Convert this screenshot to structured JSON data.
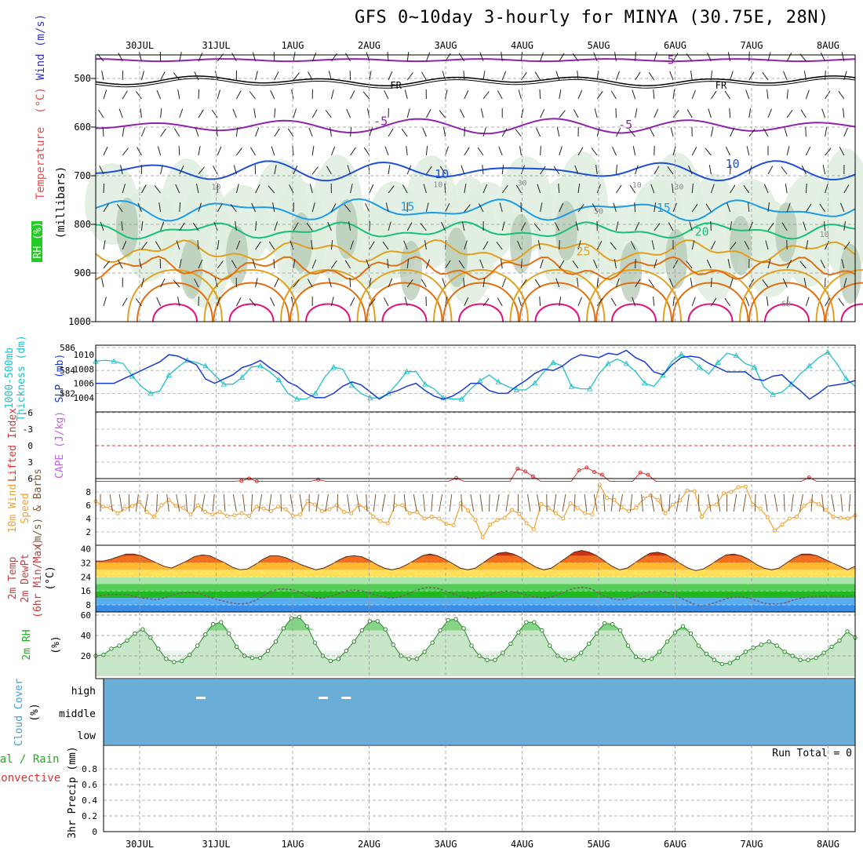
{
  "title": "GFS 0~10day 3-hourly for MINYA (30.75E, 28N)",
  "days": [
    "30JUL",
    "31JUL",
    "1AUG",
    "2AUG",
    "3AUG",
    "4AUG",
    "5AUG",
    "6AUG",
    "7AUG",
    "8AUG"
  ],
  "colors": {
    "isotherm_violet": "#8e24aa",
    "isotherm_blue": "#1e4fd8",
    "isotherm_sky": "#1e9be6",
    "isotherm_green": "#16c07a",
    "isotherm_orange": "#e0a020",
    "isotherm_darkorange": "#e07014",
    "isotherm_magenta": "#e0147c",
    "rh_shade_light": "#e0eee0",
    "rh_shade_mid": "#b4c8b4",
    "thickness": "#22c0c8",
    "slp": "#1a3ccc",
    "lifted_index": "#e03030",
    "wind10m": "#f0a030",
    "barb": "#7a5a3a",
    "rh2m_fill": "#5cc85c",
    "cloud": "#6aaed8"
  },
  "chart_data": [
    {
      "type": "contour",
      "panel": "upper-air",
      "ylabel_left": [
        "Temperature",
        "(°C)",
        "Wind (m/s)"
      ],
      "ylabel_rh": "RH (%)",
      "ylabel_unit": "(millibars)",
      "y_ticks": [
        500,
        600,
        700,
        800,
        900,
        1000
      ],
      "ylim": [
        1000,
        450
      ],
      "isotherm_labels": [
        {
          "text": "-5",
          "day": 7.45,
          "p": 462
        },
        {
          "text": "FR",
          "day": 3.9,
          "p": 513
        },
        {
          "text": "FR",
          "day": 8.15,
          "p": 513
        },
        {
          "text": "-5",
          "day": 3.7,
          "p": 588
        },
        {
          "text": "-5",
          "day": 6.9,
          "p": 595
        },
        {
          "text": "10",
          "day": 4.5,
          "p": 697
        },
        {
          "text": "10",
          "day": 8.3,
          "p": 676
        },
        {
          "text": "15",
          "day": 4.05,
          "p": 764
        },
        {
          "text": "15",
          "day": 7.4,
          "p": 766
        },
        {
          "text": "20",
          "day": 7.9,
          "p": 815
        },
        {
          "text": "25",
          "day": 6.35,
          "p": 856
        }
      ],
      "rh_labels": [
        {
          "text": "10",
          "day": 1.55,
          "p": 722
        },
        {
          "text": "10",
          "day": 4.45,
          "p": 717
        },
        {
          "text": "30",
          "day": 5.55,
          "p": 714
        },
        {
          "text": "10",
          "day": 7.05,
          "p": 718
        },
        {
          "text": "30",
          "day": 7.6,
          "p": 722
        },
        {
          "text": "50",
          "day": 6.55,
          "p": 772
        },
        {
          "text": "10",
          "day": 9.5,
          "p": 819
        },
        {
          "text": "60",
          "day": 9.0,
          "p": 962
        }
      ]
    },
    {
      "type": "line",
      "panel": "thickness-slp",
      "ylabel_thickness": [
        "1000-500mb",
        "Thickness (dm)"
      ],
      "ylabel_slp": "SLP (mb)",
      "thickness_ticks": [
        582,
        584,
        586
      ],
      "slp_ticks": [
        1004,
        1006,
        1008,
        1010
      ],
      "series": [
        {
          "values": [
            584.8,
            584.9,
            584.8,
            584.6,
            583.5,
            582.6,
            582.0,
            582.2,
            583.6,
            584.3,
            584.9,
            584.7,
            584.4,
            583.6,
            582.8,
            582.8,
            583.4,
            584.3,
            584.4,
            583.9,
            583.2,
            582.0,
            581.5,
            581.5,
            582.0,
            583.4,
            584.3,
            584.1,
            582.7,
            582.0,
            581.6,
            581.6,
            582.0,
            582.9,
            583.9,
            583.9,
            582.8,
            582.4,
            581.6,
            581.5,
            581.5,
            582.4,
            583.1,
            583.6,
            583.0,
            582.6,
            582.3,
            582.3,
            582.9,
            583.9,
            584.7,
            584.4,
            582.6,
            582.4,
            582.4,
            583.7,
            584.6,
            585.0,
            584.6,
            583.9,
            582.9,
            582.6,
            583.6,
            584.8,
            585.4,
            585.0,
            584.3,
            583.7,
            584.7,
            585.5,
            585.3,
            584.6,
            584.3,
            582.6,
            581.9,
            582.1,
            582.8,
            583.7,
            584.4,
            585.1,
            585.6,
            584.6,
            583.3,
            582.6
          ]
        },
        {
          "values": [
            1006,
            1006,
            1006,
            1006.6,
            1007.2,
            1007.8,
            1008.4,
            1009,
            1010,
            1009.8,
            1009.2,
            1008.6,
            1006.6,
            1006,
            1006.6,
            1007.2,
            1008.2,
            1008.6,
            1009.2,
            1008.2,
            1007.4,
            1006.2,
            1005.6,
            1004.6,
            1004,
            1004,
            1004.6,
            1005.6,
            1006.2,
            1005.8,
            1004.8,
            1003.8,
            1004.6,
            1005,
            1005.6,
            1006,
            1005,
            1004.2,
            1003.8,
            1004.2,
            1005,
            1006,
            1006,
            1005,
            1004.6,
            1004.6,
            1005.6,
            1006.4,
            1007.4,
            1008,
            1007.8,
            1008.4,
            1009.4,
            1010,
            1009.8,
            1009.6,
            1010.2,
            1010,
            1010.6,
            1009.6,
            1009,
            1007.6,
            1007.2,
            1008.6,
            1009.6,
            1009.8,
            1009.6,
            1008.8,
            1008.2,
            1007.6,
            1007.6,
            1007.6,
            1006.6,
            1006.4,
            1007,
            1007.2,
            1006,
            1005,
            1003.8,
            1004.6,
            1005.6,
            1005.8,
            1006,
            1006.4
          ]
        }
      ]
    },
    {
      "type": "line",
      "panel": "stability",
      "ylabel_li": "Lifted Index",
      "ylabel_cape": "CAPE (J/kg)",
      "y_ticks": [
        "-6",
        "-3",
        "0",
        "3",
        "6"
      ],
      "ylim": [
        -6,
        6
      ],
      "series": [
        {
          "values": [
            7,
            7,
            7,
            7,
            7,
            7,
            7,
            7,
            7,
            7,
            7,
            7,
            7,
            7,
            7,
            7,
            7,
            7,
            7,
            6.4,
            6,
            6.6,
            7,
            7,
            7,
            7,
            7,
            7,
            7,
            6.2,
            7,
            7,
            7,
            7,
            7,
            7,
            7,
            7,
            7,
            7,
            7,
            7,
            7,
            7,
            7,
            7,
            7,
            5.9,
            7,
            7,
            7,
            7,
            7,
            7,
            7,
            4.2,
            4.7,
            5.6,
            7,
            7,
            7,
            7,
            7,
            4.5,
            4,
            4.8,
            5.3,
            7,
            7,
            7,
            7,
            4.9,
            5.3,
            7,
            7,
            7,
            7,
            7,
            7,
            7,
            7,
            7,
            7,
            7,
            7,
            7,
            7,
            7,
            7,
            7,
            7,
            7,
            7,
            5.8,
            7,
            7,
            7,
            7,
            7,
            7
          ]
        }
      ]
    },
    {
      "type": "line",
      "panel": "wind10m",
      "ylabel": [
        "10m Wind",
        "Speed",
        "(m/s) & Barbs"
      ],
      "y_ticks": [
        2,
        4,
        6,
        8
      ],
      "ylim": [
        0,
        10
      ],
      "series": [
        {
          "values": [
            6.6,
            5.8,
            5.6,
            4.8,
            5.5,
            5.9,
            6.5,
            5.0,
            4.3,
            6.0,
            6.8,
            5.9,
            5.6,
            4.6,
            6.0,
            5.0,
            4.6,
            5.0,
            4.4,
            4.5,
            4.8,
            4.4,
            5.8,
            5.5,
            5.1,
            5.8,
            5.4,
            4.4,
            4.6,
            6.6,
            6.1,
            5.1,
            5.4,
            6.0,
            5.0,
            4.8,
            6.0,
            5.6,
            4.3,
            3.6,
            3.3,
            6.0,
            6.0,
            4.8,
            5.0,
            4.0,
            4.3,
            4.0,
            3.2,
            3.0,
            6.3,
            5.2,
            3.8,
            1.2,
            3.1,
            3.8,
            4.1,
            5.3,
            4.7,
            3.3,
            2.4,
            6.2,
            5.6,
            4.8,
            4.0,
            6.3,
            5.6,
            4.8,
            4.6,
            9.1,
            7.1,
            6.8,
            5.7,
            5.1,
            5.6,
            7.0,
            7.5,
            6.8,
            4.8,
            6.1,
            6.7,
            8.2,
            8.1,
            4.3,
            5.9,
            6.1,
            7.8,
            8.0,
            8.7,
            8.8,
            6.1,
            5.5,
            4.2,
            2.2,
            3.1,
            4.0,
            4.3,
            5.9,
            6.6,
            6.2,
            5.3,
            4.3,
            4.1,
            4.0,
            4.5
          ]
        }
      ]
    },
    {
      "type": "area",
      "panel": "temp2m",
      "ylabel": [
        "2m Temp",
        "2m DewPt",
        "(6hr Min/Max)",
        "(°C)"
      ],
      "y_ticks": [
        8,
        16,
        24,
        32,
        40
      ],
      "ylim": [
        4,
        42
      ],
      "series": [
        {
          "values": [
            33,
            33,
            34,
            35.5,
            37,
            37,
            36,
            34,
            32,
            30,
            29,
            31,
            33,
            35.5,
            36.5,
            36,
            34,
            32,
            29.5,
            28,
            28.5,
            31,
            34,
            36,
            36,
            35,
            33,
            31,
            29.5,
            28,
            29,
            31,
            33.5,
            35.5,
            36,
            35.5,
            33.5,
            31,
            29,
            28,
            29,
            31,
            33.5,
            36,
            37,
            36,
            34,
            31.5,
            29,
            28,
            29,
            32,
            35,
            37.5,
            38,
            37,
            35,
            32,
            29.5,
            28,
            29,
            32,
            35,
            38,
            39,
            38,
            36,
            33,
            30,
            28,
            29,
            32,
            35,
            37.5,
            38,
            37,
            34.5,
            31.5,
            29,
            27.5,
            28.5,
            31,
            34,
            36.5,
            37,
            36,
            34,
            31,
            29,
            28,
            29,
            32,
            35,
            37,
            37,
            36,
            34,
            32,
            30,
            28,
            30
          ]
        },
        {
          "values": [
            13,
            13.5,
            14,
            14,
            14,
            13,
            12,
            11.5,
            11,
            12,
            13.5,
            14.5,
            15,
            15,
            14,
            12.5,
            11,
            10,
            9,
            8.5,
            9,
            10.5,
            13,
            15.5,
            17,
            17,
            16.5,
            15,
            13,
            12,
            12,
            13,
            14.5,
            16,
            16.5,
            16,
            15,
            13.5,
            12.5,
            12,
            12.5,
            14,
            16,
            17.5,
            18,
            17.5,
            16,
            14.5,
            13,
            12,
            12,
            12.5,
            14,
            15.5,
            16,
            15.5,
            14.5,
            13.5,
            12.5,
            12,
            12.5,
            14,
            16,
            17.5,
            18,
            17.5,
            15.5,
            13,
            11.5,
            11,
            11.5,
            13,
            14.5,
            15.5,
            16,
            15.5,
            14,
            12,
            10,
            8,
            7.5,
            8.5,
            10,
            11.5,
            12.5,
            12.5,
            12,
            10.5,
            9,
            8.5,
            8.5,
            9.5,
            11,
            12,
            12.5,
            13,
            13,
            13,
            13,
            13,
            13.5
          ]
        }
      ]
    },
    {
      "type": "area",
      "panel": "rh2m",
      "ylabel": [
        "2m RH",
        "(%)"
      ],
      "y_ticks": [
        20,
        40,
        60
      ],
      "ylim": [
        0,
        60
      ],
      "series": [
        {
          "values": [
            20,
            21,
            27,
            30,
            35,
            42,
            46,
            38,
            27,
            17,
            14,
            15,
            21,
            30,
            41,
            51,
            53,
            42,
            29,
            20,
            18,
            18,
            25,
            34,
            47,
            57,
            58,
            49,
            33,
            20,
            15,
            17,
            25,
            34,
            45,
            54,
            54,
            46,
            31,
            20,
            17,
            17,
            24,
            33,
            45,
            55,
            56,
            47,
            30,
            20,
            16,
            16,
            23,
            32,
            43,
            53,
            53,
            45,
            30,
            20,
            16,
            17,
            23,
            32,
            42,
            52,
            51,
            45,
            30,
            19,
            16,
            17,
            24,
            34,
            43,
            49,
            42,
            30,
            22,
            16,
            12,
            13,
            18,
            24,
            28,
            31,
            34,
            30,
            24,
            20,
            16,
            16,
            18,
            23,
            29,
            35,
            44,
            38
          ]
        }
      ]
    },
    {
      "type": "bar",
      "panel": "cloud",
      "ylabel": [
        "Cloud Cover",
        "(%)"
      ],
      "levels": [
        "high",
        "middle",
        "low"
      ],
      "gaps": [
        {
          "day": 1.35,
          "level": "high"
        },
        {
          "day": 2.95,
          "level": "high"
        },
        {
          "day": 3.25,
          "level": "high"
        }
      ]
    },
    {
      "type": "bar",
      "panel": "precip",
      "ylabel_total": "Total / Rain",
      "ylabel_conv": "Convective",
      "ylabel": "3hr Precip (mm)",
      "y_ticks": [
        "0",
        "0.2",
        "0.4",
        "0.6",
        "0.8"
      ],
      "ylim": [
        0,
        0.9
      ],
      "run_total": "Run Total = 0",
      "values": []
    }
  ]
}
